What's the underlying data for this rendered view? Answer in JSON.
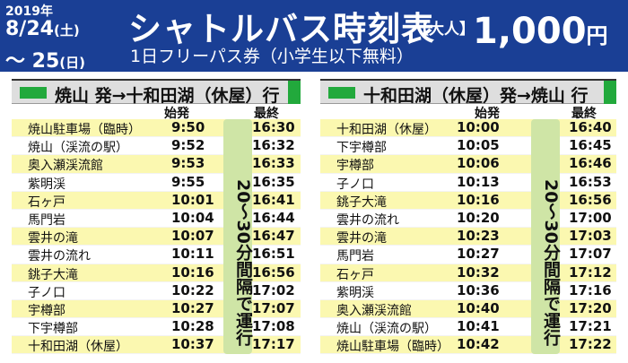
{
  "header": {
    "year": "2019年",
    "start_date": "8/24",
    "start_weekday": "(土)",
    "end_date": "～ 25",
    "end_weekday": "(日)",
    "title": "シャトルバス時刻表",
    "category": "【大人】",
    "price": "1,000",
    "price_unit": "円",
    "subtitle": "1日フリーパス券（小学生以下無料）"
  },
  "colors": {
    "header_bg": "#1a3f95",
    "accent_green": "#22a93c",
    "row_yellow": "#fbf8b0",
    "freq_bg": "#cfe5a6"
  },
  "left": {
    "route": "焼山 発→十和田湖（休屋）行",
    "col_first": "始発",
    "col_last": "最終",
    "frequency": "20～30分間隔で運行",
    "rows": [
      {
        "stop": "焼山駐車場（臨時）",
        "first": "9:50",
        "last": "16:30"
      },
      {
        "stop": "焼山（渓流の駅）",
        "first": "9:52",
        "last": "16:32"
      },
      {
        "stop": "奥入瀬渓流館",
        "first": "9:53",
        "last": "16:33"
      },
      {
        "stop": "紫明渓",
        "first": "9:55",
        "last": "16:35"
      },
      {
        "stop": "石ヶ戸",
        "first": "10:01",
        "last": "16:41"
      },
      {
        "stop": "馬門岩",
        "first": "10:04",
        "last": "16:44"
      },
      {
        "stop": "雲井の滝",
        "first": "10:07",
        "last": "16:47"
      },
      {
        "stop": "雲井の流れ",
        "first": "10:11",
        "last": "16:51"
      },
      {
        "stop": "銚子大滝",
        "first": "10:16",
        "last": "16:56"
      },
      {
        "stop": "子ノ口",
        "first": "10:22",
        "last": "17:02"
      },
      {
        "stop": "宇樽部",
        "first": "10:27",
        "last": "17:07"
      },
      {
        "stop": "下宇樽部",
        "first": "10:28",
        "last": "17:08"
      },
      {
        "stop": "十和田湖（休屋）",
        "first": "10:37",
        "last": "17:17"
      }
    ]
  },
  "right": {
    "route": "十和田湖（休屋）発→焼山 行",
    "col_first": "始発",
    "col_last": "最終",
    "frequency": "20～30分間隔で運行",
    "rows": [
      {
        "stop": "十和田湖（休屋）",
        "first": "10:00",
        "last": "16:40"
      },
      {
        "stop": "下宇樽部",
        "first": "10:05",
        "last": "16:45"
      },
      {
        "stop": "宇樽部",
        "first": "10:06",
        "last": "16:46"
      },
      {
        "stop": "子ノ口",
        "first": "10:13",
        "last": "16:53"
      },
      {
        "stop": "銚子大滝",
        "first": "10:16",
        "last": "16:56"
      },
      {
        "stop": "雲井の流れ",
        "first": "10:20",
        "last": "17:00"
      },
      {
        "stop": "雲井の滝",
        "first": "10:23",
        "last": "17:03"
      },
      {
        "stop": "馬門岩",
        "first": "10:27",
        "last": "17:07"
      },
      {
        "stop": "石ヶ戸",
        "first": "10:32",
        "last": "17:12"
      },
      {
        "stop": "紫明渓",
        "first": "10:36",
        "last": "17:16"
      },
      {
        "stop": "奥入瀬渓流館",
        "first": "10:40",
        "last": "17:20"
      },
      {
        "stop": "焼山（渓流の駅）",
        "first": "10:41",
        "last": "17:21"
      },
      {
        "stop": "焼山駐車場（臨時）",
        "first": "10:42",
        "last": "17:22"
      }
    ]
  }
}
